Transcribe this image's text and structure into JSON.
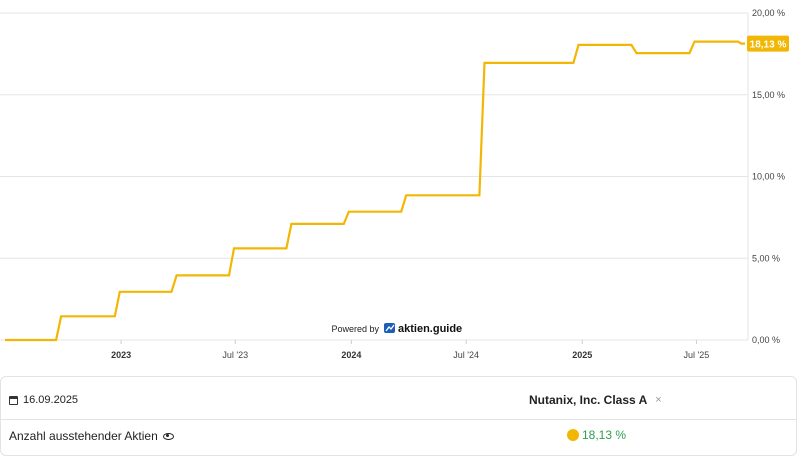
{
  "chart_data": {
    "type": "line",
    "series": [
      {
        "values": [
          [
            "2022-07-01",
            0.0
          ],
          [
            "2022-09-20",
            0.0
          ],
          [
            "2022-09-28",
            1.45
          ],
          [
            "2022-12-22",
            1.45
          ],
          [
            "2022-12-30",
            2.95
          ],
          [
            "2023-03-22",
            2.95
          ],
          [
            "2023-03-30",
            3.95
          ],
          [
            "2023-06-21",
            3.95
          ],
          [
            "2023-06-29",
            5.6
          ],
          [
            "2023-09-20",
            5.6
          ],
          [
            "2023-09-28",
            7.1
          ],
          [
            "2023-12-20",
            7.1
          ],
          [
            "2023-12-28",
            7.85
          ],
          [
            "2024-03-20",
            7.85
          ],
          [
            "2024-03-28",
            8.85
          ],
          [
            "2024-07-22",
            8.85
          ],
          [
            "2024-07-30",
            16.95
          ],
          [
            "2024-12-18",
            16.95
          ],
          [
            "2024-12-26",
            18.05
          ],
          [
            "2025-03-20",
            18.05
          ],
          [
            "2025-03-28",
            17.55
          ],
          [
            "2025-06-20",
            17.55
          ],
          [
            "2025-06-28",
            18.25
          ],
          [
            "2025-09-05",
            18.25
          ],
          [
            "2025-09-10",
            18.13
          ],
          [
            "2025-09-16",
            18.13
          ]
        ]
      }
    ],
    "x_range": [
      "2022-07-01",
      "2025-09-16"
    ],
    "x_ticks": [
      {
        "date": "2023-01-01",
        "label": "2023",
        "bold": true
      },
      {
        "date": "2023-07-01",
        "label": "Jul '23",
        "bold": false
      },
      {
        "date": "2024-01-01",
        "label": "2024",
        "bold": true
      },
      {
        "date": "2024-07-01",
        "label": "Jul '24",
        "bold": false
      },
      {
        "date": "2025-01-01",
        "label": "2025",
        "bold": true
      },
      {
        "date": "2025-07-01",
        "label": "Jul '25",
        "bold": false
      }
    ],
    "ylim": [
      0,
      20
    ],
    "y_ticks": [
      {
        "value": 0,
        "label": "0,00 %"
      },
      {
        "value": 5,
        "label": "5,00 %"
      },
      {
        "value": 10,
        "label": "10,00 %"
      },
      {
        "value": 15,
        "label": "15,00 %"
      },
      {
        "value": 20,
        "label": "20,00 %"
      }
    ],
    "y_axis_side": "right",
    "grid": true,
    "last_value_label": "18,13 %",
    "line_color": "#f2b705",
    "credit": {
      "prefix": "Powered by",
      "brand": "aktien.guide"
    }
  },
  "panel": {
    "date": "16.09.2025",
    "security_name": "Nutanix, Inc. Class A",
    "close_symbol": "×",
    "metric_label": "Anzahl ausstehender Aktien",
    "metric_value": "18,13 %",
    "value_color": "#2e9e4f"
  }
}
